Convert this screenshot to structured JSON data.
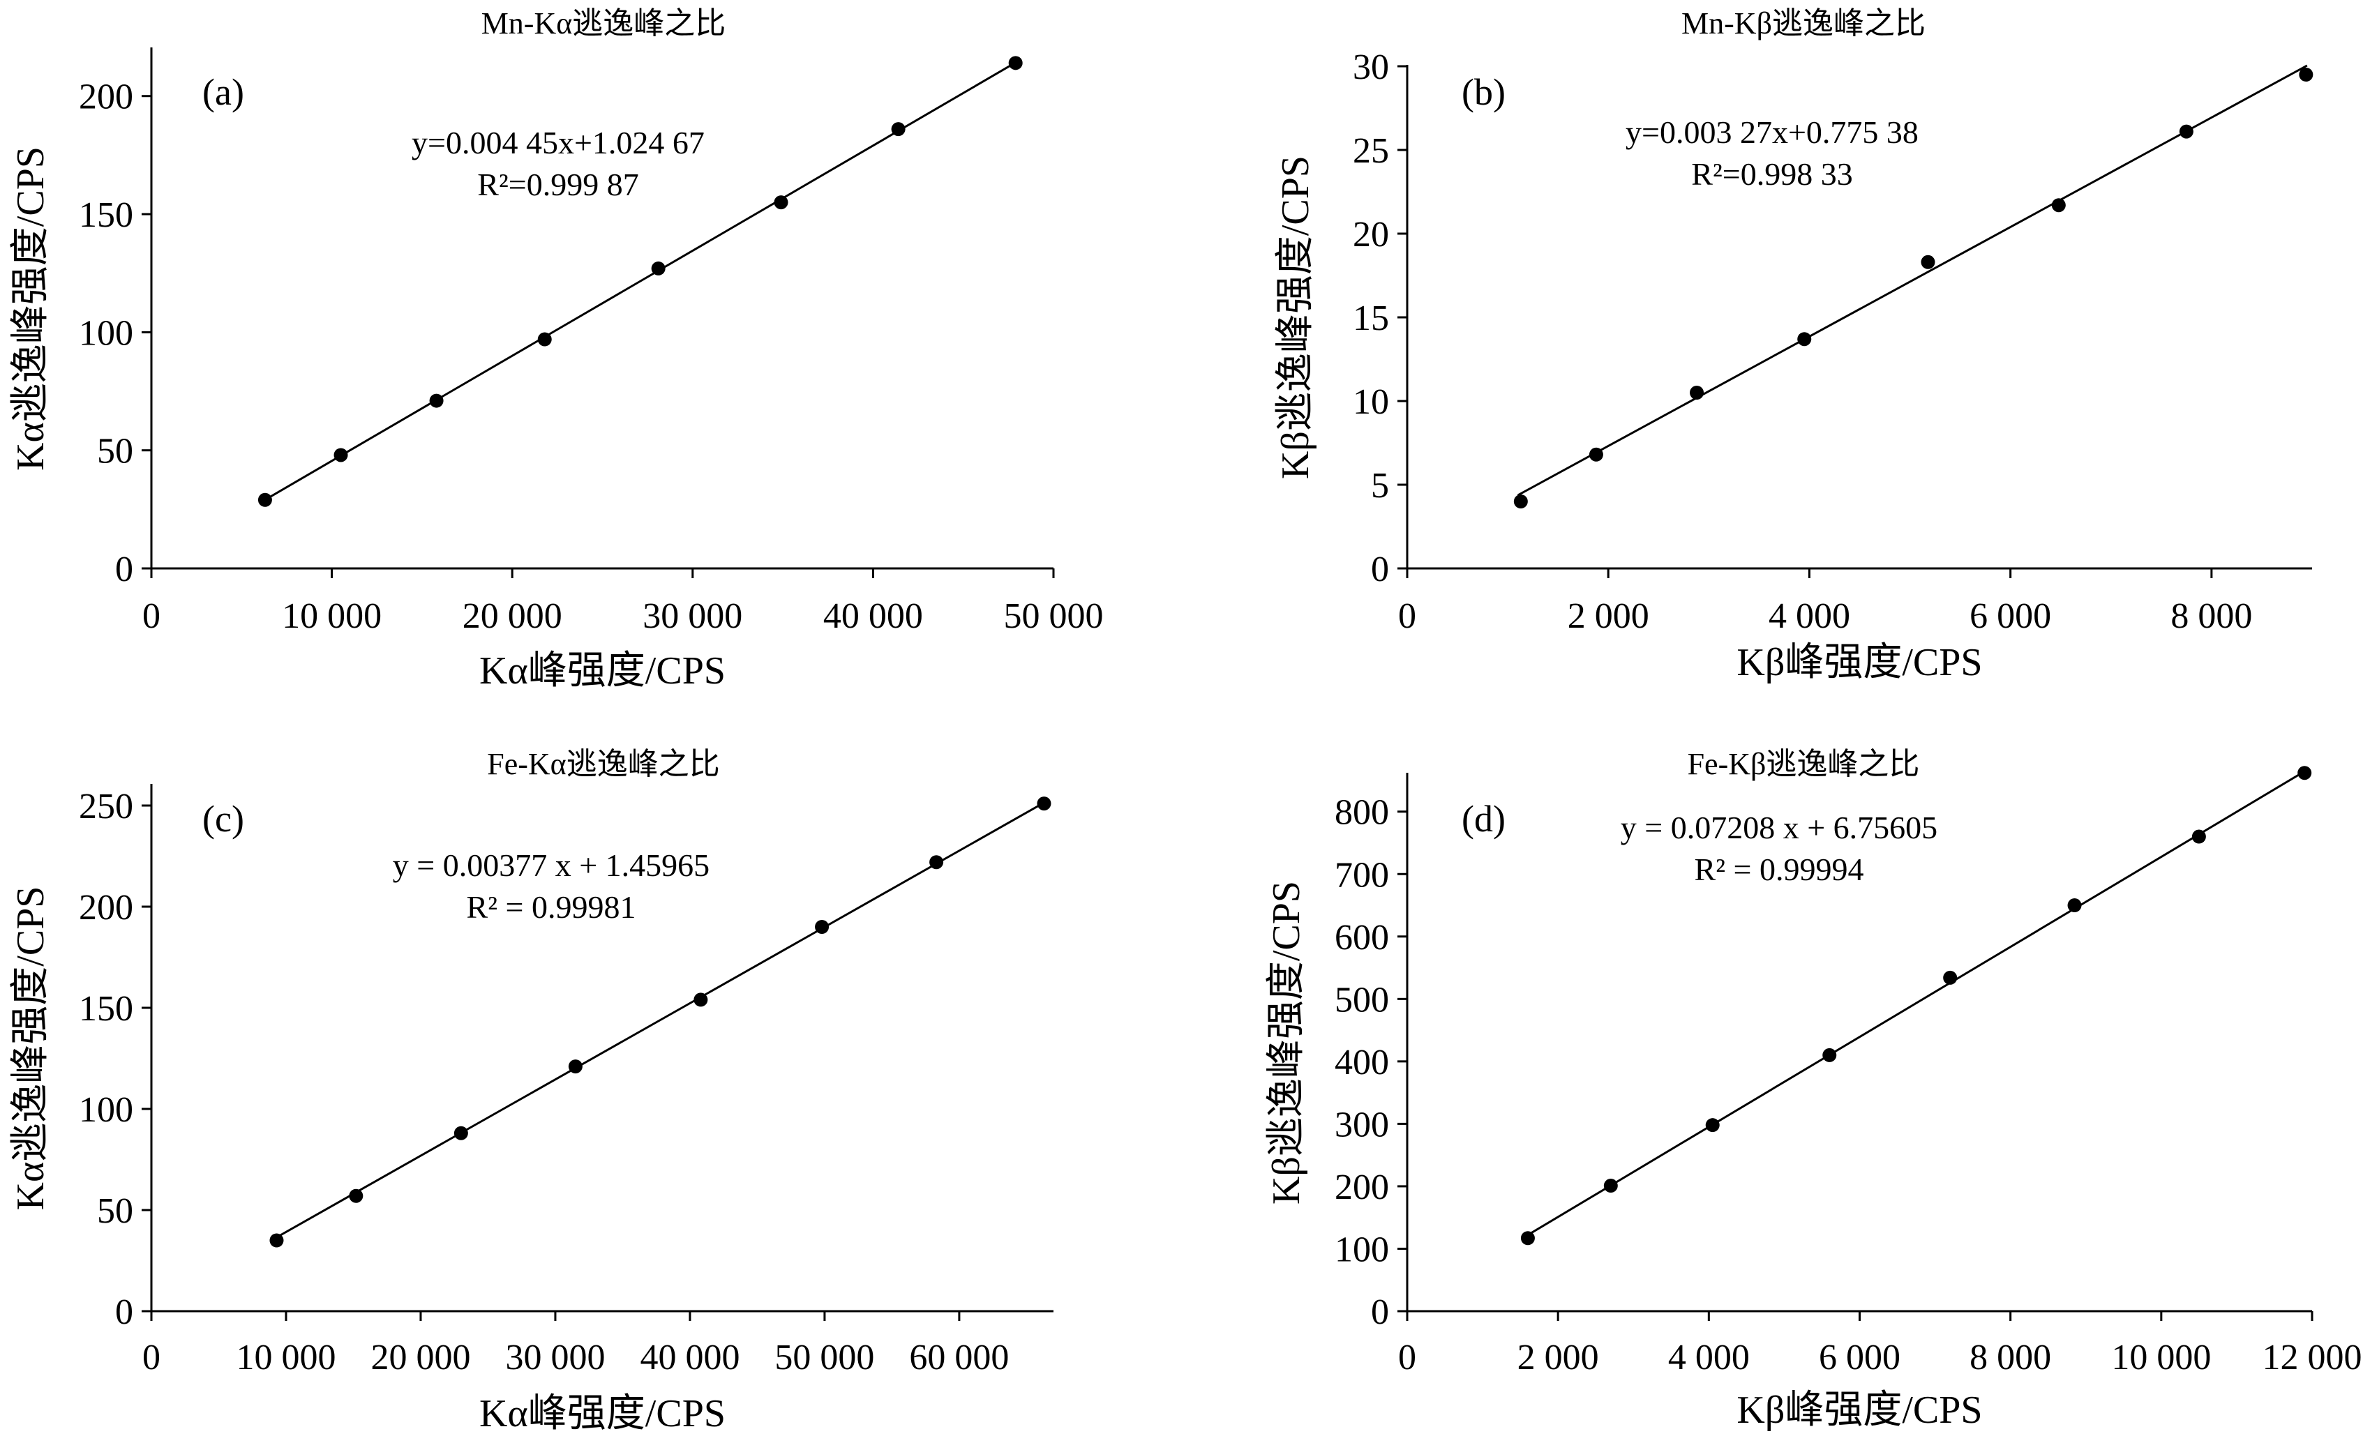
{
  "chart_data": [
    {
      "type": "scatter",
      "title": "Mn-Kα逃逸峰之比",
      "panel_label": "(a)",
      "xlabel": "Kα峰强度/CPS",
      "ylabel": "Kα逃逸峰强度/CPS",
      "xlim": [
        0,
        50000
      ],
      "ylim": [
        0,
        220
      ],
      "xticks": [
        0,
        10000,
        20000,
        30000,
        40000,
        50000
      ],
      "xtick_labels": [
        "0",
        "10 000",
        "20 000",
        "30 000",
        "40 000",
        "50 000"
      ],
      "yticks": [
        0,
        50,
        100,
        150,
        200
      ],
      "ytick_labels": [
        "0",
        "50",
        "100",
        "150",
        "200"
      ],
      "points": [
        [
          6300,
          29
        ],
        [
          10500,
          48
        ],
        [
          15800,
          71
        ],
        [
          21800,
          97
        ],
        [
          28100,
          127
        ],
        [
          34900,
          155
        ],
        [
          41400,
          186
        ],
        [
          47900,
          214
        ]
      ],
      "fit": {
        "slope": 0.00445,
        "intercept": 1.02467,
        "x_range": [
          6300,
          48000
        ]
      },
      "equation_lines": [
        "y=0.004 45x+1.024 67",
        "R²=0.999 87"
      ]
    },
    {
      "type": "scatter",
      "title": "Mn-Kβ逃逸峰之比",
      "panel_label": "(b)",
      "xlabel": "Kβ峰强度/CPS",
      "ylabel": "Kβ逃逸峰强度/CPS",
      "xlim": [
        0,
        9000
      ],
      "ylim": [
        0,
        30
      ],
      "xticks": [
        0,
        2000,
        4000,
        6000,
        8000
      ],
      "xtick_labels": [
        "0",
        "2 000",
        "4 000",
        "6 000",
        "8 000"
      ],
      "yticks": [
        0,
        5,
        10,
        15,
        20,
        25,
        30
      ],
      "ytick_labels": [
        "0",
        "5",
        "10",
        "15",
        "20",
        "25",
        "30"
      ],
      "points": [
        [
          1130,
          4.0
        ],
        [
          1880,
          6.8
        ],
        [
          2880,
          10.5
        ],
        [
          3950,
          13.7
        ],
        [
          5180,
          18.3
        ],
        [
          6480,
          21.7
        ],
        [
          7750,
          26.1
        ],
        [
          8940,
          29.5
        ]
      ],
      "fit": {
        "slope": 0.00327,
        "intercept": 0.77538,
        "x_range": [
          1100,
          8950
        ]
      },
      "equation_lines": [
        "y=0.003 27x+0.775 38",
        "R²=0.998 33"
      ]
    },
    {
      "type": "scatter",
      "title": "Fe-Kα逃逸峰之比",
      "panel_label": "(c)",
      "xlabel": "Kα峰强度/CPS",
      "ylabel": "Kα逃逸峰强度/CPS",
      "xlim": [
        0,
        67000
      ],
      "ylim": [
        0,
        260
      ],
      "xticks": [
        0,
        10000,
        20000,
        30000,
        40000,
        50000,
        60000
      ],
      "xtick_labels": [
        "0",
        "10 000",
        "20 000",
        "30 000",
        "40 000",
        "50 000",
        "60 000"
      ],
      "yticks": [
        0,
        50,
        100,
        150,
        200,
        250
      ],
      "ytick_labels": [
        "0",
        "50",
        "100",
        "150",
        "200",
        "250"
      ],
      "points": [
        [
          9300,
          35
        ],
        [
          15200,
          57
        ],
        [
          23000,
          88
        ],
        [
          31500,
          121
        ],
        [
          40800,
          154
        ],
        [
          49800,
          190
        ],
        [
          58300,
          222
        ],
        [
          66300,
          251
        ]
      ],
      "fit": {
        "slope": 0.00377,
        "intercept": 1.45965,
        "x_range": [
          9200,
          66500
        ]
      },
      "equation_lines": [
        "y = 0.00377 x + 1.45965",
        "R² = 0.99981"
      ]
    },
    {
      "type": "scatter",
      "title": "Fe-Kβ逃逸峰之比",
      "panel_label": "(d)",
      "xlabel": "Kβ峰强度/CPS",
      "ylabel": "Kβ逃逸峰强度/CPS",
      "xlim": [
        0,
        12000
      ],
      "ylim": [
        0,
        860
      ],
      "xticks": [
        0,
        2000,
        4000,
        6000,
        8000,
        10000,
        12000
      ],
      "xtick_labels": [
        "0",
        "2 000",
        "4 000",
        "6 000",
        "8 000",
        "10 000",
        "12 000"
      ],
      "yticks": [
        0,
        100,
        200,
        300,
        400,
        500,
        600,
        700,
        800
      ],
      "ytick_labels": [
        "0",
        "100",
        "200",
        "300",
        "400",
        "500",
        "600",
        "700",
        "800"
      ],
      "points": [
        [
          1600,
          117
        ],
        [
          2700,
          201
        ],
        [
          4050,
          298
        ],
        [
          5600,
          410
        ],
        [
          7200,
          534
        ],
        [
          8850,
          650
        ],
        [
          10500,
          760
        ],
        [
          11900,
          862
        ]
      ],
      "fit": {
        "slope": 0.07208,
        "intercept": 6.75605,
        "x_range": [
          1550,
          11950
        ]
      },
      "equation_lines": [
        "y = 0.07208 x + 6.75605",
        "R² = 0.99994"
      ]
    }
  ]
}
